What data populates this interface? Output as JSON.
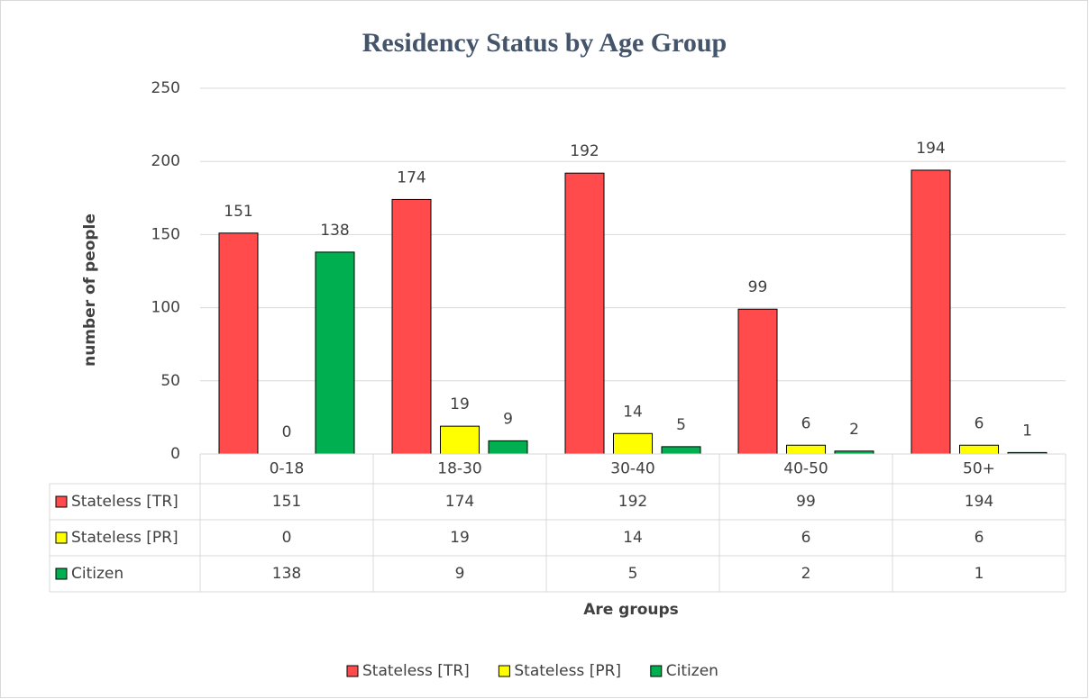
{
  "chart_data": {
    "type": "bar",
    "title": "Residency Status by Age Group",
    "x_label": "Are groups",
    "y_label": "number of people",
    "categories": [
      "0-18",
      "18-30",
      "30-40",
      "40-50",
      "50+"
    ],
    "series": [
      {
        "name": "Stateless [TR]",
        "color": "#ff4b4b",
        "values": [
          151,
          174,
          192,
          99,
          194
        ]
      },
      {
        "name": "Stateless [PR]",
        "color": "#ffff00",
        "values": [
          0,
          19,
          14,
          6,
          6
        ]
      },
      {
        "name": "Citizen",
        "color": "#00b050",
        "values": [
          138,
          9,
          5,
          2,
          1
        ]
      }
    ],
    "ylim": [
      0,
      250
    ],
    "yticks": [
      0,
      50,
      100,
      150,
      200,
      250
    ],
    "grid": true,
    "legend": "bottom",
    "data_table": true
  }
}
